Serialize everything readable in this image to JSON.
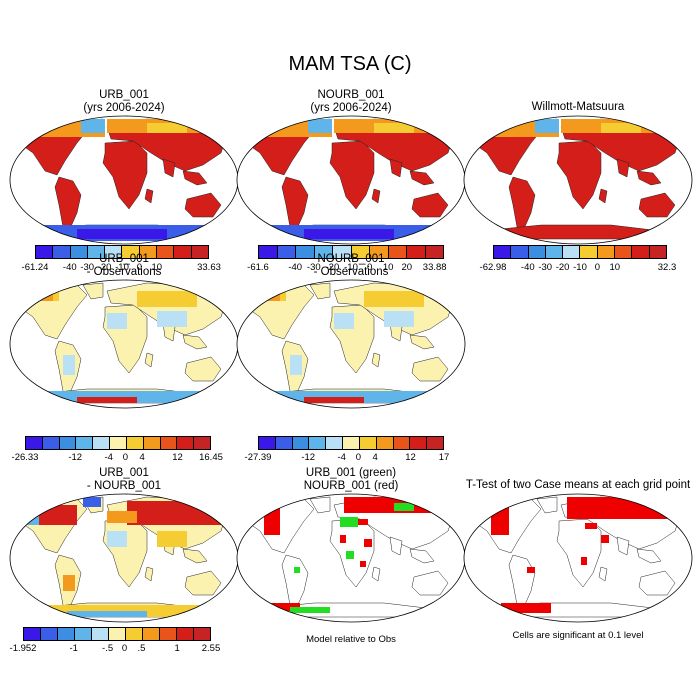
{
  "title": "MAM TSA (C)",
  "panels": {
    "p1": {
      "line1": "URB_001",
      "line2": "(yrs 2006-2024)",
      "ticks": [
        "-61.24",
        "-40",
        "-30",
        "-20",
        "-10",
        "0",
        "10",
        "33.63"
      ]
    },
    "p2": {
      "line1": "NOURB_001",
      "line2": "(yrs 2006-2024)",
      "ticks": [
        "-61.6",
        "-40",
        "-30",
        "-20",
        "-10",
        "0",
        "10",
        "20",
        "33.88"
      ]
    },
    "p3": {
      "line1": "Willmott-Matsuura",
      "ticks": [
        "-62.98",
        "-40",
        "-30",
        "-20",
        "-10",
        "0",
        "10",
        "32.3"
      ]
    },
    "p4": {
      "line1": "URB_001",
      "line2": "- Observations",
      "ticks": [
        "-26.33",
        "-12",
        "-4",
        "0",
        "4",
        "12",
        "16.45"
      ]
    },
    "p5": {
      "line1": "NOURB_001",
      "line2": "- Observations",
      "ticks": [
        "-27.39",
        "-12",
        "-4",
        "0",
        "4",
        "12",
        "17"
      ]
    },
    "p7": {
      "line1": "URB_001",
      "line2": "- NOURB_001",
      "ticks": [
        "-1.952",
        "-1",
        "-.5",
        "0",
        ".5",
        "1",
        "2.55"
      ]
    },
    "p8": {
      "line1": "URB_001 (green)",
      "line2": "NOURB_001 (red)",
      "note": "Model relative to Obs"
    },
    "p9": {
      "line1": "T-Test of two Case means at each grid point",
      "note": "Cells are significant at 0.1 level"
    }
  },
  "colors": {
    "abs_scale": [
      "#3a18e8",
      "#3a5ee8",
      "#3c8fe0",
      "#5fb4ea",
      "#b9e0f5",
      "#f6cc33",
      "#f39a1e",
      "#e8541a",
      "#d41e1a",
      "#c62424"
    ],
    "diff_scale": [
      "#3a18e8",
      "#3a5ee8",
      "#3c8fe0",
      "#5fb4ea",
      "#b9e0f5",
      "#fbf2b0",
      "#f6cc33",
      "#f39a1e",
      "#e8541a",
      "#d41e1a",
      "#c62424"
    ],
    "sig_green": "#22dd22",
    "sig_red": "#ee0000"
  }
}
